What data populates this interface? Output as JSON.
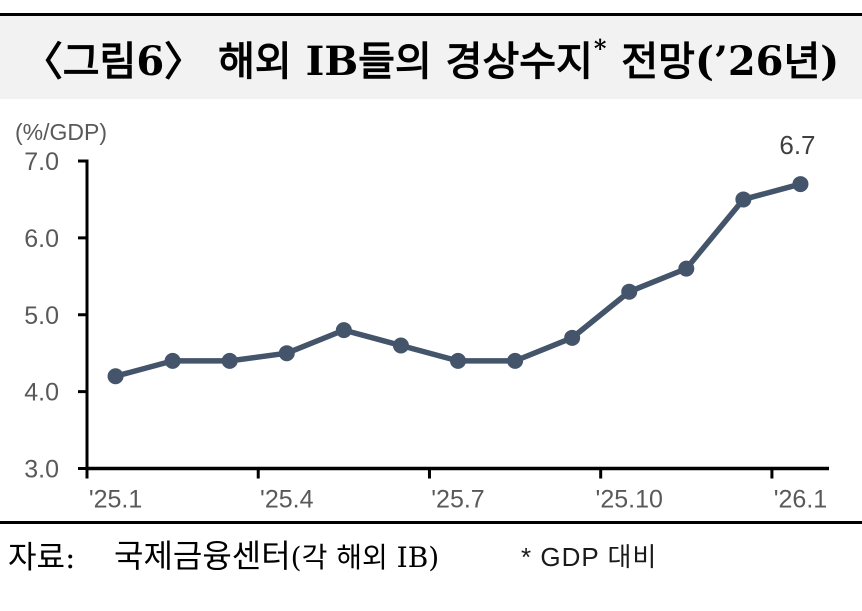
{
  "header": {
    "title_prefix": "〈그림6〉 해외 IB들의 경상수지",
    "title_sup": "*",
    "title_suffix": " 전망(’26년)"
  },
  "chart_data": {
    "type": "line",
    "title": "〈그림6〉 해외 IB들의 경상수지* 전망(’26년)",
    "unit_label": "(%/GDP)",
    "x": [
      "'25.1",
      "'25.2",
      "'25.3",
      "'25.4",
      "'25.5",
      "'25.6",
      "'25.7",
      "'25.8",
      "'25.9",
      "'25.10",
      "'25.11",
      "'25.12",
      "'26.1"
    ],
    "values": [
      4.2,
      4.4,
      4.4,
      4.5,
      4.8,
      4.6,
      4.4,
      4.4,
      4.7,
      5.3,
      5.6,
      6.5,
      6.7
    ],
    "x_tick_labels": [
      "'25.1",
      "'25.4",
      "'25.7",
      "'25.10",
      "'26.1"
    ],
    "x_tick_positions": [
      0,
      3,
      6,
      9,
      12
    ],
    "y_ticks": [
      7.0,
      6.0,
      5.0,
      4.0,
      3.0
    ],
    "y_tick_labels": [
      "7.0",
      "6.0",
      "5.0",
      "4.0",
      "3.0"
    ],
    "ylim": [
      3.0,
      7.0
    ],
    "last_point_label": "6.7",
    "grid": false,
    "legend": false,
    "line_color": "#44546A",
    "axis_color": "#000000",
    "axis_label_color": "#595959",
    "data_label_color": "#404040"
  },
  "footer": {
    "source_label": "자료:",
    "source_main": "국제금융센터",
    "source_paren": "(각 해외 IB)",
    "note": "* GDP 대비"
  }
}
